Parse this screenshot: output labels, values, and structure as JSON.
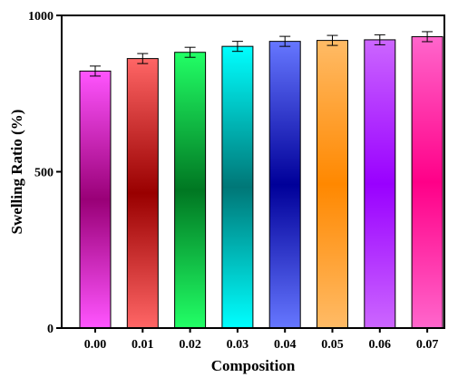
{
  "chart_data": {
    "type": "bar",
    "title": "",
    "xlabel": "Composition",
    "ylabel": "Swelling Ratio (%)",
    "ylim": [
      0,
      1000
    ],
    "yticks": [
      0,
      500,
      1000
    ],
    "grid": false,
    "categories": [
      "0.00",
      "0.01",
      "0.02",
      "0.03",
      "0.04",
      "0.05",
      "0.06",
      "0.07"
    ],
    "values": [
      822,
      862,
      882,
      901,
      917,
      920,
      922,
      932
    ],
    "errors": [
      16,
      16,
      16,
      16,
      16,
      16,
      16,
      16
    ],
    "colors": [
      [
        "#ff55ff",
        "#990077"
      ],
      [
        "#ff6666",
        "#990000"
      ],
      [
        "#22ff66",
        "#007722"
      ],
      [
        "#00ffff",
        "#007777"
      ],
      [
        "#6677ff",
        "#000099"
      ],
      [
        "#ffbb66",
        "#ff8800"
      ],
      [
        "#cc66ff",
        "#9900ff"
      ],
      [
        "#ff66cc",
        "#ff0088"
      ]
    ]
  }
}
